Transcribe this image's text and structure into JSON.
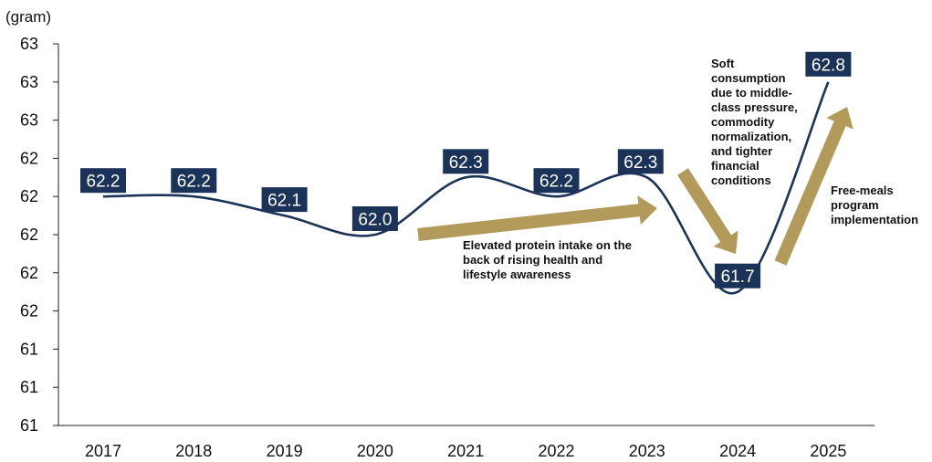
{
  "chart_data": {
    "type": "line",
    "unit_label": "(gram)",
    "categories": [
      "2017",
      "2018",
      "2019",
      "2020",
      "2021",
      "2022",
      "2023",
      "2024",
      "2025"
    ],
    "series": [
      {
        "values": [
          62.2,
          62.2,
          62.1,
          62.0,
          62.3,
          62.2,
          62.3,
          61.7,
          62.8
        ]
      }
    ],
    "y_tick_labels": [
      "61",
      "61",
      "61",
      "62",
      "62",
      "62",
      "62",
      "62",
      "63",
      "63",
      "63"
    ],
    "ylim": [
      61.0,
      63.0
    ],
    "line_color": "#1b3358",
    "label_box_color": "#1b3358",
    "arrow_color": "#b19a5a",
    "grid": false,
    "annotations": [
      {
        "lines": [
          "Elevated protein intake on the",
          "back of rising health and",
          "lifestyle awareness"
        ]
      },
      {
        "lines": [
          "Soft",
          "consumption",
          "due to middle-",
          "class pressure,",
          "commodity",
          "normalization,",
          "and tighter",
          "financial",
          "conditions"
        ]
      },
      {
        "lines": [
          "Free-meals",
          "program",
          "implementation"
        ]
      }
    ]
  }
}
